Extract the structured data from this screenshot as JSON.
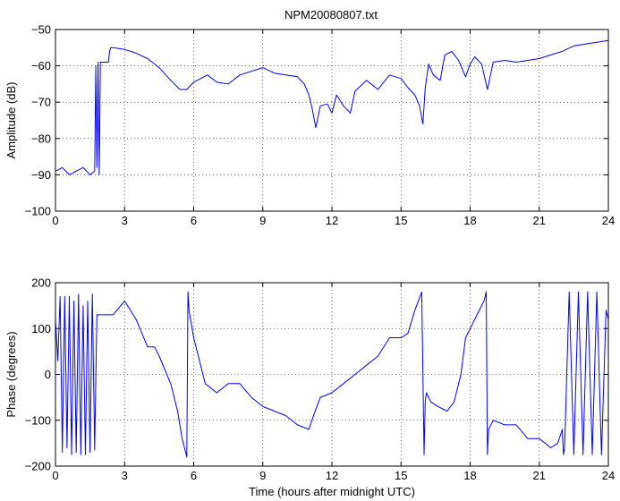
{
  "figure": {
    "title": "NPM20080807.txt"
  },
  "chart_data": [
    {
      "type": "line",
      "title": "NPM20080807.txt",
      "xlabel": "",
      "ylabel": "Amplitude (dB)",
      "xlim": [
        0,
        24
      ],
      "ylim": [
        -100,
        -50
      ],
      "xticks": [
        0,
        3,
        6,
        9,
        12,
        15,
        18,
        21,
        24
      ],
      "yticks": [
        -100,
        -90,
        -80,
        -70,
        -60,
        -50
      ],
      "xtick_labels": [
        "0",
        "3",
        "6",
        "9",
        "12",
        "15",
        "18",
        "21",
        "24"
      ],
      "ytick_labels": [
        "−100",
        "−90",
        "−80",
        "−70",
        "−60",
        "−50"
      ],
      "grid": true,
      "series": [
        {
          "color": "#0000ff",
          "x": [
            0,
            0.3,
            0.6,
            0.9,
            1.2,
            1.5,
            1.7,
            1.75,
            1.8,
            1.85,
            1.9,
            1.95,
            2.0,
            2.3,
            2.35,
            2.4,
            2.5,
            3.0,
            3.5,
            4.0,
            4.5,
            5.0,
            5.4,
            5.7,
            6.0,
            6.3,
            6.6,
            7.0,
            7.5,
            8.0,
            8.5,
            9.0,
            9.5,
            10.0,
            10.5,
            10.8,
            11.0,
            11.15,
            11.3,
            11.5,
            11.8,
            12.0,
            12.2,
            12.5,
            12.8,
            13.0,
            13.5,
            14.0,
            14.5,
            15.0,
            15.3,
            15.6,
            15.8,
            15.95,
            16.05,
            16.2,
            16.4,
            16.7,
            16.9,
            17.2,
            17.5,
            17.8,
            18.0,
            18.2,
            18.5,
            18.75,
            19.0,
            19.5,
            20.0,
            20.5,
            21.0,
            21.5,
            22.0,
            22.5,
            23.0,
            23.5,
            24.0
          ],
          "y": [
            -89,
            -88,
            -90,
            -89,
            -88,
            -90,
            -89,
            -60,
            -88,
            -59,
            -90,
            -59,
            -59,
            -59,
            -56,
            -55,
            -55,
            -55.5,
            -56.5,
            -58,
            -60.5,
            -64,
            -66.5,
            -66.5,
            -64.5,
            -63.5,
            -62.5,
            -64.5,
            -65,
            -62.5,
            -61.5,
            -60.5,
            -62,
            -62.5,
            -63,
            -65,
            -68,
            -72,
            -77,
            -71,
            -70.5,
            -73,
            -68,
            -71,
            -73,
            -67,
            -64,
            -66.5,
            -62.5,
            -63.5,
            -66,
            -68,
            -71,
            -76,
            -66,
            -59.5,
            -62.5,
            -64,
            -57,
            -56,
            -58.5,
            -63,
            -59.5,
            -57.5,
            -59.5,
            -66.5,
            -59,
            -58.5,
            -59,
            -58.5,
            -58,
            -57,
            -56,
            -54.5,
            -54,
            -53.5,
            -53
          ]
        }
      ]
    },
    {
      "type": "line",
      "title": "",
      "xlabel": "Time (hours after midnight UTC)",
      "ylabel": "Phase (degrees)",
      "xlim": [
        0,
        24
      ],
      "ylim": [
        -200,
        200
      ],
      "xticks": [
        0,
        3,
        6,
        9,
        12,
        15,
        18,
        21,
        24
      ],
      "yticks": [
        -200,
        -100,
        0,
        100,
        200
      ],
      "xtick_labels": [
        "0",
        "3",
        "6",
        "9",
        "12",
        "15",
        "18",
        "21",
        "24"
      ],
      "ytick_labels": [
        "−200",
        "−100",
        "0",
        "100",
        "200"
      ],
      "grid": true,
      "series": [
        {
          "color": "#0000ff",
          "x": [
            0,
            0.1,
            0.2,
            0.3,
            0.4,
            0.5,
            0.6,
            0.7,
            0.8,
            0.9,
            1.0,
            1.1,
            1.2,
            1.3,
            1.4,
            1.5,
            1.6,
            1.7,
            1.8,
            2.0,
            2.5,
            3.0,
            3.5,
            4.0,
            4.3,
            4.5,
            5.0,
            5.3,
            5.5,
            5.7,
            5.75,
            5.8,
            6.0,
            6.5,
            7.0,
            7.5,
            8.0,
            8.5,
            9.0,
            9.5,
            10.0,
            10.5,
            11.0,
            11.2,
            11.5,
            12.0,
            12.5,
            13.0,
            13.5,
            14.0,
            14.5,
            15.0,
            15.3,
            15.6,
            15.9,
            16.0,
            16.05,
            16.1,
            16.3,
            16.6,
            17.0,
            17.3,
            17.6,
            17.8,
            18.0,
            18.3,
            18.6,
            18.7,
            18.75,
            18.8,
            19.0,
            19.5,
            20.0,
            20.5,
            21.0,
            21.5,
            21.8,
            22.0,
            22.05,
            22.1,
            22.3,
            22.5,
            22.7,
            22.9,
            23.1,
            23.3,
            23.5,
            23.7,
            23.9,
            24.0
          ],
          "y": [
            120,
            30,
            170,
            -170,
            170,
            -160,
            170,
            -175,
            160,
            -170,
            175,
            -175,
            150,
            -175,
            160,
            -170,
            175,
            -165,
            130,
            130,
            130,
            160,
            120,
            60,
            60,
            40,
            -20,
            -80,
            -140,
            -180,
            180,
            140,
            80,
            -20,
            -40,
            -20,
            -20,
            -50,
            -70,
            -80,
            -90,
            -110,
            -120,
            -90,
            -50,
            -40,
            -20,
            0,
            20,
            40,
            80,
            80,
            90,
            140,
            180,
            -175,
            -60,
            -40,
            -60,
            -70,
            -80,
            -60,
            0,
            80,
            100,
            130,
            160,
            180,
            -175,
            -120,
            -100,
            -110,
            -110,
            -140,
            -140,
            -160,
            -150,
            -120,
            -175,
            -160,
            180,
            -175,
            180,
            -175,
            180,
            -175,
            180,
            -175,
            140,
            120
          ]
        }
      ]
    }
  ]
}
